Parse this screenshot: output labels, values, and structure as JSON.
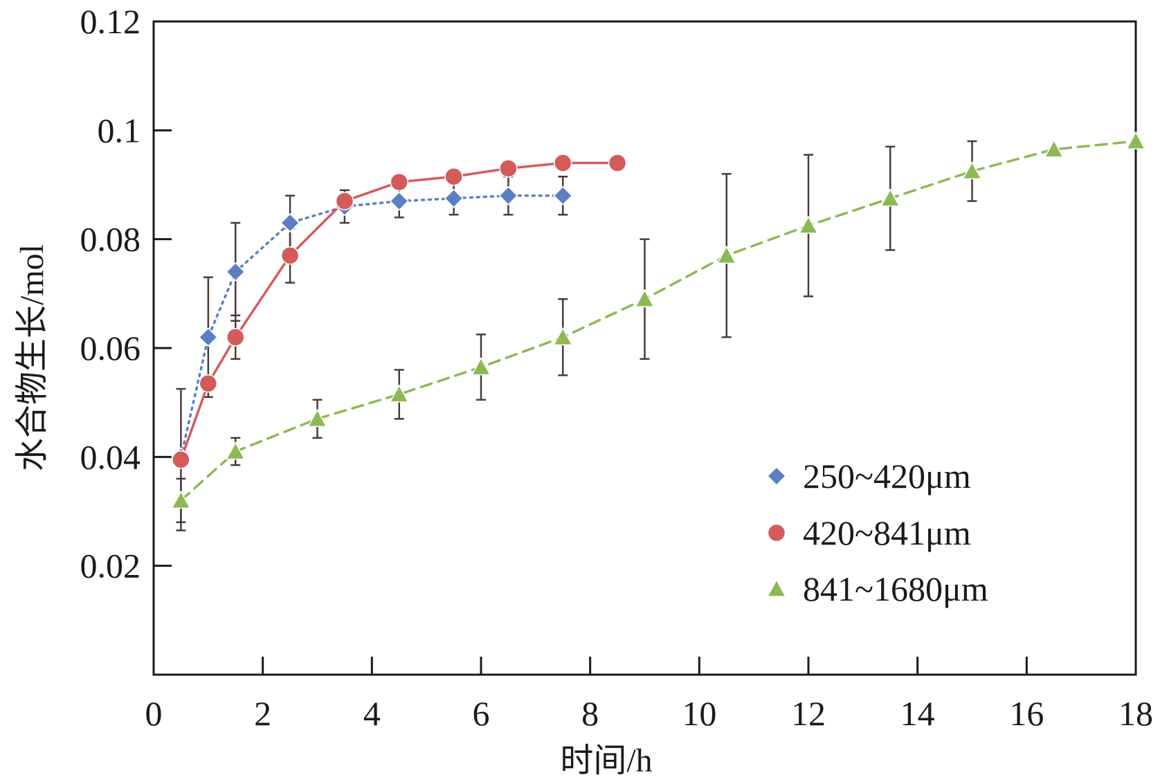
{
  "chart_data": {
    "type": "line",
    "title": "",
    "xlabel": "时间/h",
    "ylabel": "水合物生长/mol",
    "xlim": [
      0,
      18
    ],
    "ylim": [
      0,
      0.12
    ],
    "x_ticks": [
      "0",
      "2",
      "4",
      "6",
      "8",
      "10",
      "12",
      "14",
      "16",
      "18"
    ],
    "y_ticks": [
      "0.02",
      "0.04",
      "0.06",
      "0.08",
      "0.1",
      "0.12"
    ],
    "grid": false,
    "legend_position": "lower-right",
    "series": [
      {
        "name": "250~420μm",
        "marker": "diamond",
        "line_style": "dotted",
        "color": "#5b7fc4",
        "x": [
          0.5,
          1.0,
          1.5,
          2.5,
          3.5,
          4.5,
          5.5,
          6.5,
          7.5
        ],
        "y": [
          0.04,
          0.062,
          0.074,
          0.083,
          0.086,
          0.087,
          0.0875,
          0.088,
          0.088
        ],
        "err": [
          0.0,
          0.011,
          0.009,
          0.005,
          0.003,
          0.003,
          0.003,
          0.0035,
          0.0035
        ]
      },
      {
        "name": "420~841μm",
        "marker": "circle",
        "line_style": "solid",
        "color": "#d55a5a",
        "x": [
          0.5,
          1.0,
          1.5,
          2.5,
          3.5,
          4.5,
          5.5,
          6.5,
          7.5,
          8.5
        ],
        "y": [
          0.0395,
          0.0535,
          0.062,
          0.077,
          0.087,
          0.0905,
          0.0915,
          0.093,
          0.094,
          0.094
        ],
        "err": [
          0.013,
          0.0,
          0.004,
          0.005,
          0.0,
          0.0,
          0.0,
          0.0,
          0.0,
          0.0
        ]
      },
      {
        "name": "841~1680μm",
        "marker": "triangle",
        "line_style": "dashed",
        "color": "#8db954",
        "x": [
          0.5,
          1.5,
          3.0,
          4.5,
          6.0,
          7.5,
          9.0,
          10.5,
          12.0,
          13.5,
          15.0,
          16.5,
          18.0
        ],
        "y": [
          0.032,
          0.041,
          0.047,
          0.0515,
          0.0565,
          0.062,
          0.069,
          0.077,
          0.0825,
          0.0875,
          0.0925,
          0.0965,
          0.098
        ],
        "err": [
          0.004,
          0.0025,
          0.0035,
          0.0045,
          0.006,
          0.007,
          0.011,
          0.015,
          0.013,
          0.0095,
          0.0055,
          0.0,
          0.0
        ]
      }
    ],
    "colors": {
      "errorbar": "#4a3a3a",
      "axis": "#1a1a1a"
    }
  }
}
